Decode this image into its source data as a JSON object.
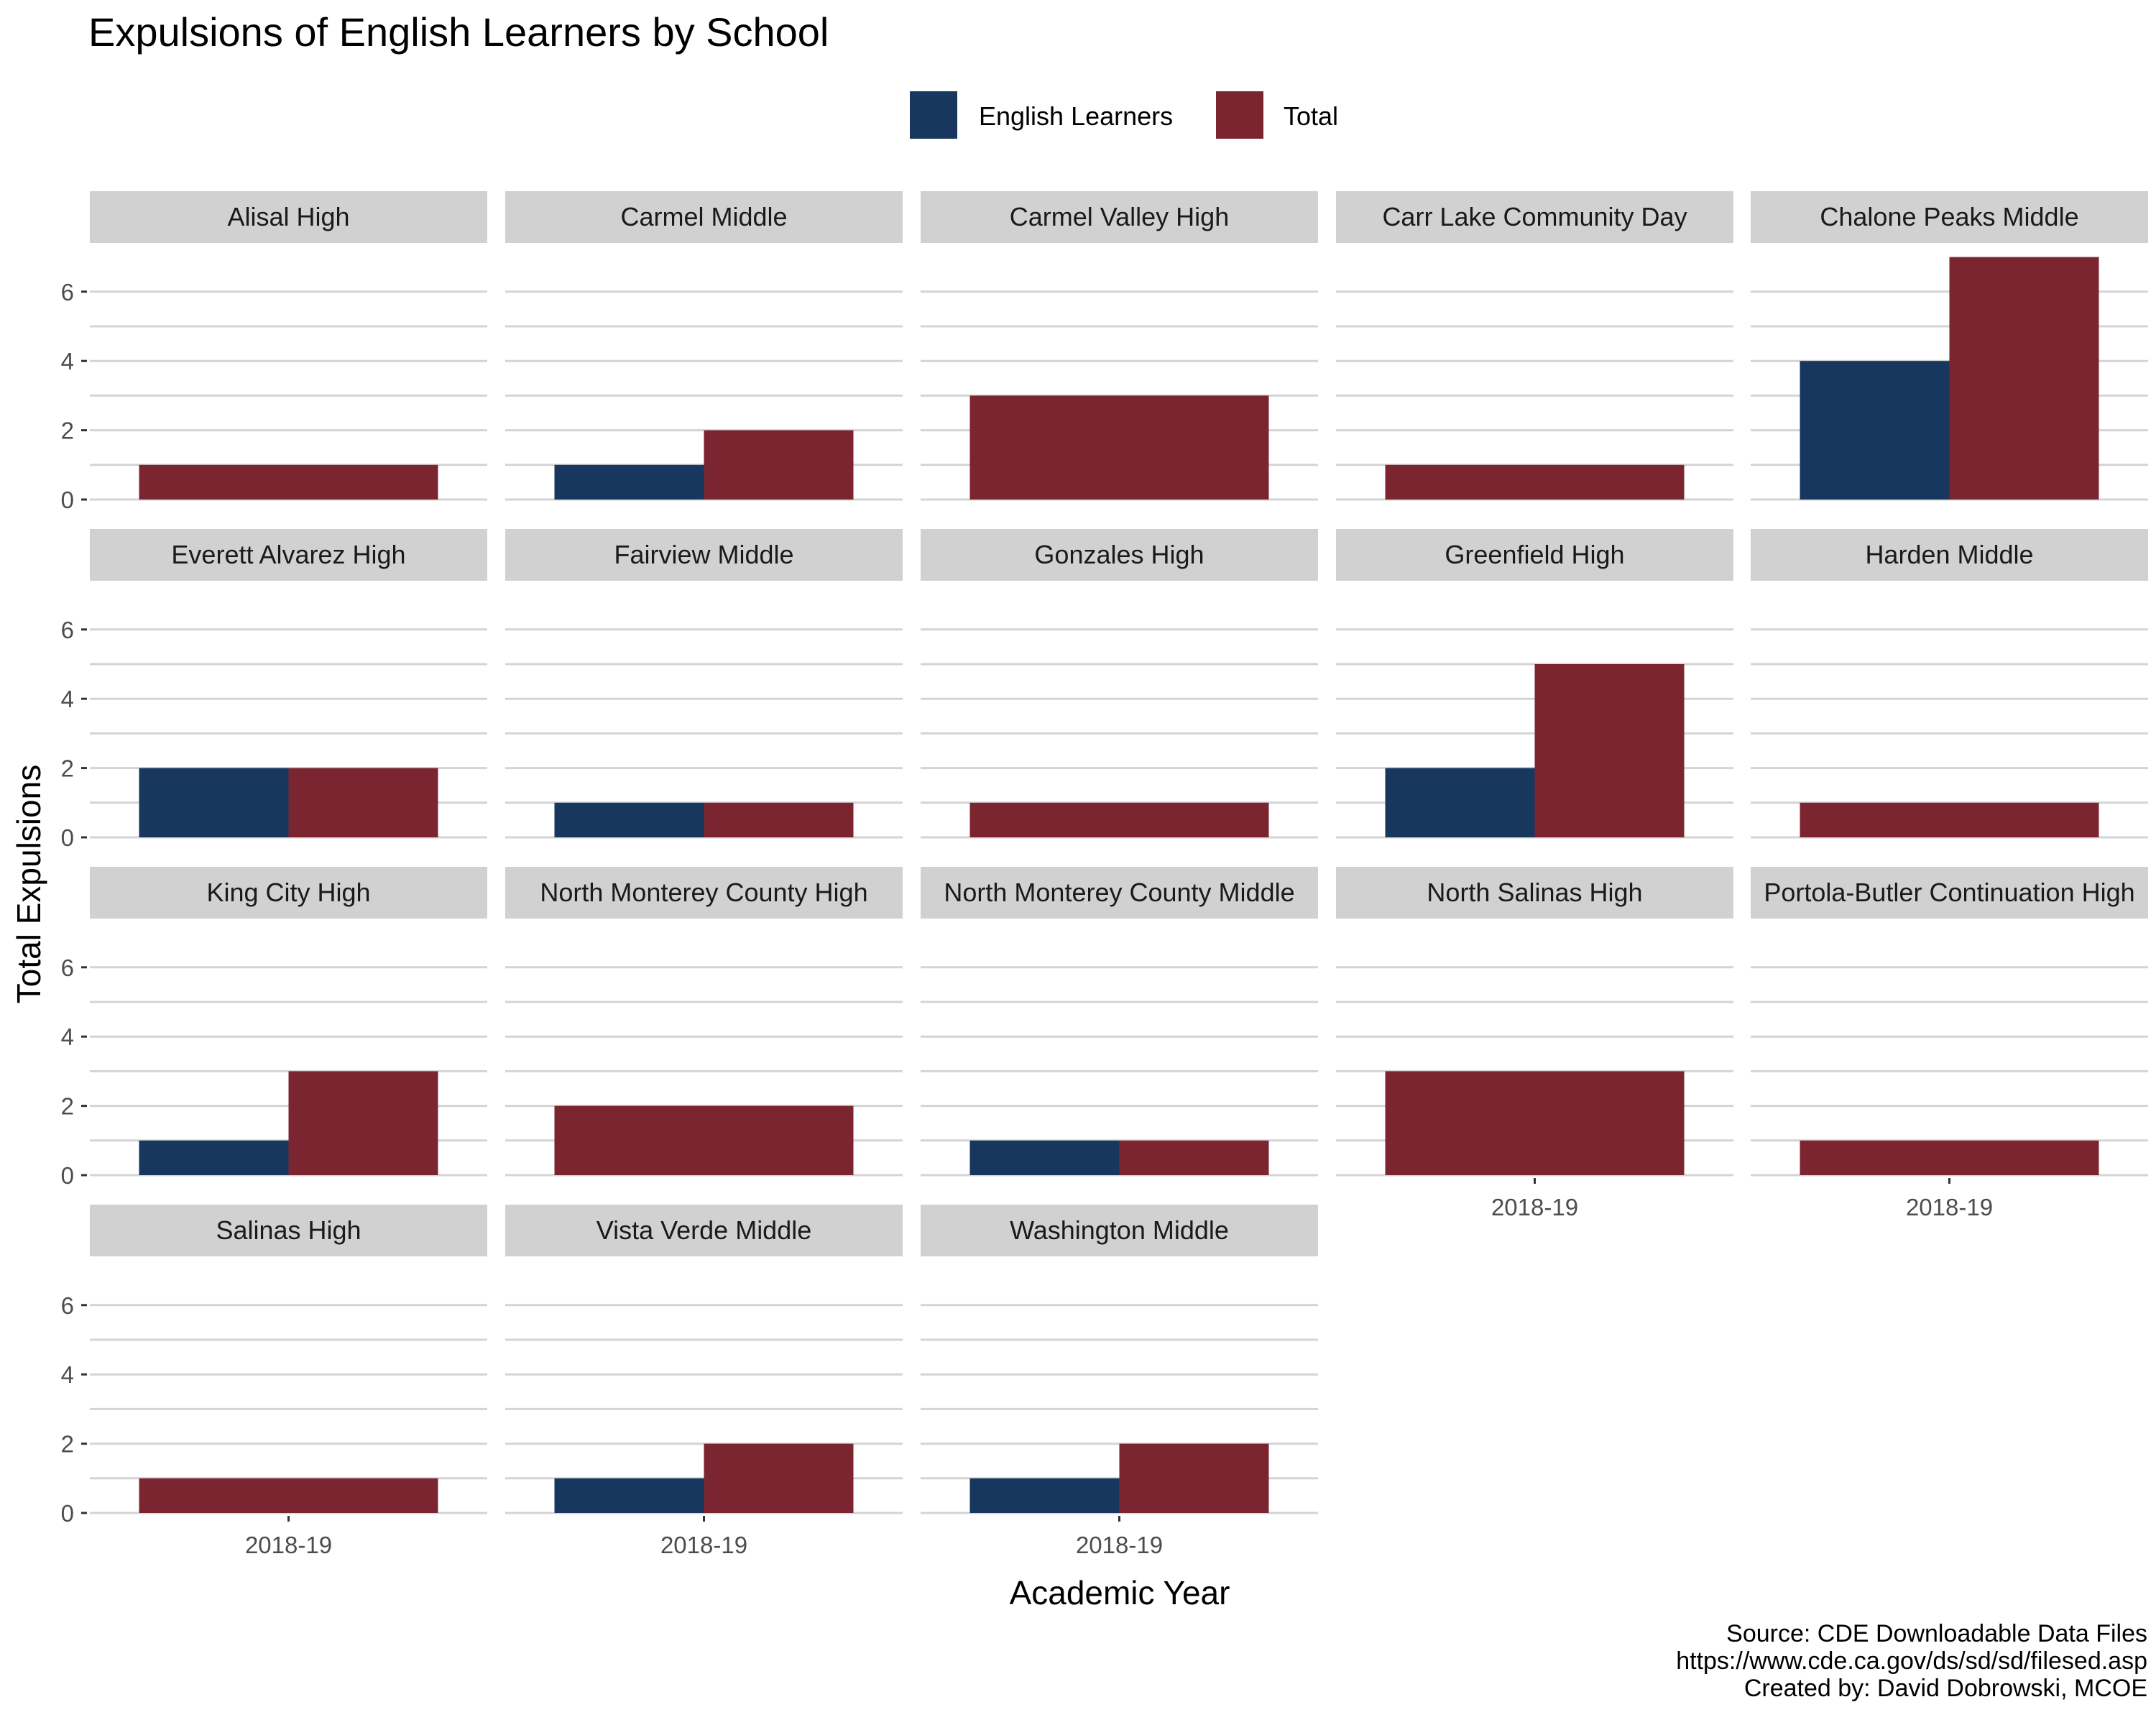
{
  "chart_data": {
    "type": "bar",
    "title": "Expulsions of English Learners by School",
    "xlabel": "Academic Year",
    "ylabel": "Total Expulsions",
    "ylim": [
      0,
      7
    ],
    "y_ticks": [
      0,
      2,
      4,
      6
    ],
    "x_category": "2018-19",
    "legend_position": "top",
    "grid": "horizontal major and minor",
    "series": [
      {
        "name": "English Learners",
        "color": "#17375e"
      },
      {
        "name": "Total",
        "color": "#7b2530"
      }
    ],
    "panels": [
      {
        "school": "Alisal High",
        "english_learners": null,
        "total": 1
      },
      {
        "school": "Carmel Middle",
        "english_learners": 1,
        "total": 2
      },
      {
        "school": "Carmel Valley High",
        "english_learners": null,
        "total": 3
      },
      {
        "school": "Carr Lake Community Day",
        "english_learners": null,
        "total": 1
      },
      {
        "school": "Chalone Peaks Middle",
        "english_learners": 4,
        "total": 7
      },
      {
        "school": "Everett Alvarez High",
        "english_learners": 2,
        "total": 2
      },
      {
        "school": "Fairview Middle",
        "english_learners": 1,
        "total": 1
      },
      {
        "school": "Gonzales High",
        "english_learners": null,
        "total": 1
      },
      {
        "school": "Greenfield High",
        "english_learners": 2,
        "total": 5
      },
      {
        "school": "Harden Middle",
        "english_learners": null,
        "total": 1
      },
      {
        "school": "King City High",
        "english_learners": 1,
        "total": 3
      },
      {
        "school": "North Monterey County High",
        "english_learners": null,
        "total": 2
      },
      {
        "school": "North Monterey County Middle",
        "english_learners": 1,
        "total": 1
      },
      {
        "school": "North Salinas High",
        "english_learners": null,
        "total": 3
      },
      {
        "school": "Portola-Butler Continuation High",
        "english_learners": null,
        "total": 1
      },
      {
        "school": "Salinas High",
        "english_learners": null,
        "total": 1
      },
      {
        "school": "Vista Verde Middle",
        "english_learners": 1,
        "total": 2
      },
      {
        "school": "Washington Middle",
        "english_learners": 1,
        "total": 2
      }
    ],
    "caption": [
      "Source: CDE Downloadable Data Files",
      "https://www.cde.ca.gov/ds/sd/sd/filesed.asp",
      "Created by: David Dobrowski, MCOE"
    ]
  }
}
